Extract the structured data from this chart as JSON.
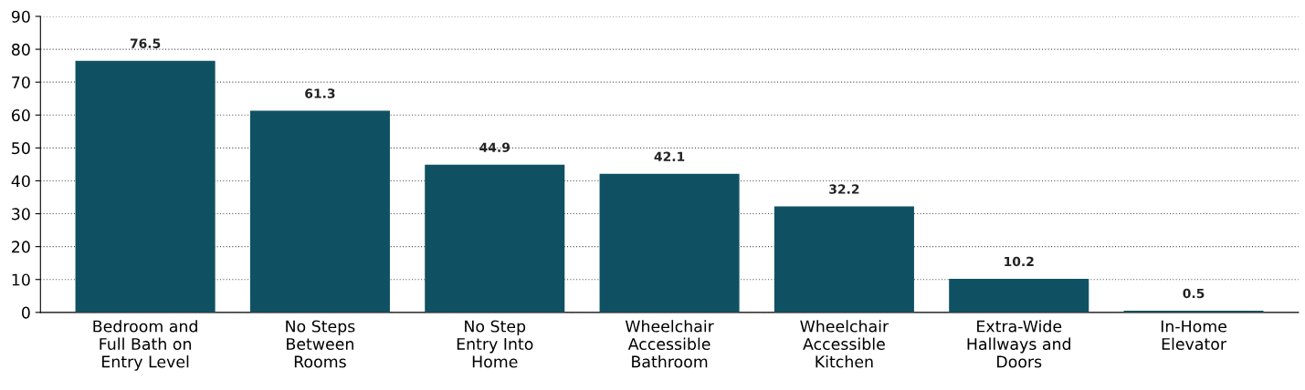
{
  "chart_data": {
    "type": "bar",
    "categories": [
      "Bedroom and\nFull Bath on\nEntry Level",
      "No Steps\nBetween\nRooms",
      "No Step\nEntry Into\nHome",
      "Wheelchair\nAccessible\nBathroom",
      "Wheelchair\nAccessible\nKitchen",
      "Extra-Wide\nHallways and\nDoors",
      "In-Home\nElevator"
    ],
    "values": [
      76.5,
      61.3,
      44.9,
      42.1,
      32.2,
      10.2,
      0.5
    ],
    "color": "#0f5163",
    "ylim": [
      0,
      90
    ],
    "yticks": [
      0,
      10,
      20,
      30,
      40,
      50,
      60,
      70,
      80,
      90
    ],
    "grid": "y",
    "data_labels": true
  }
}
